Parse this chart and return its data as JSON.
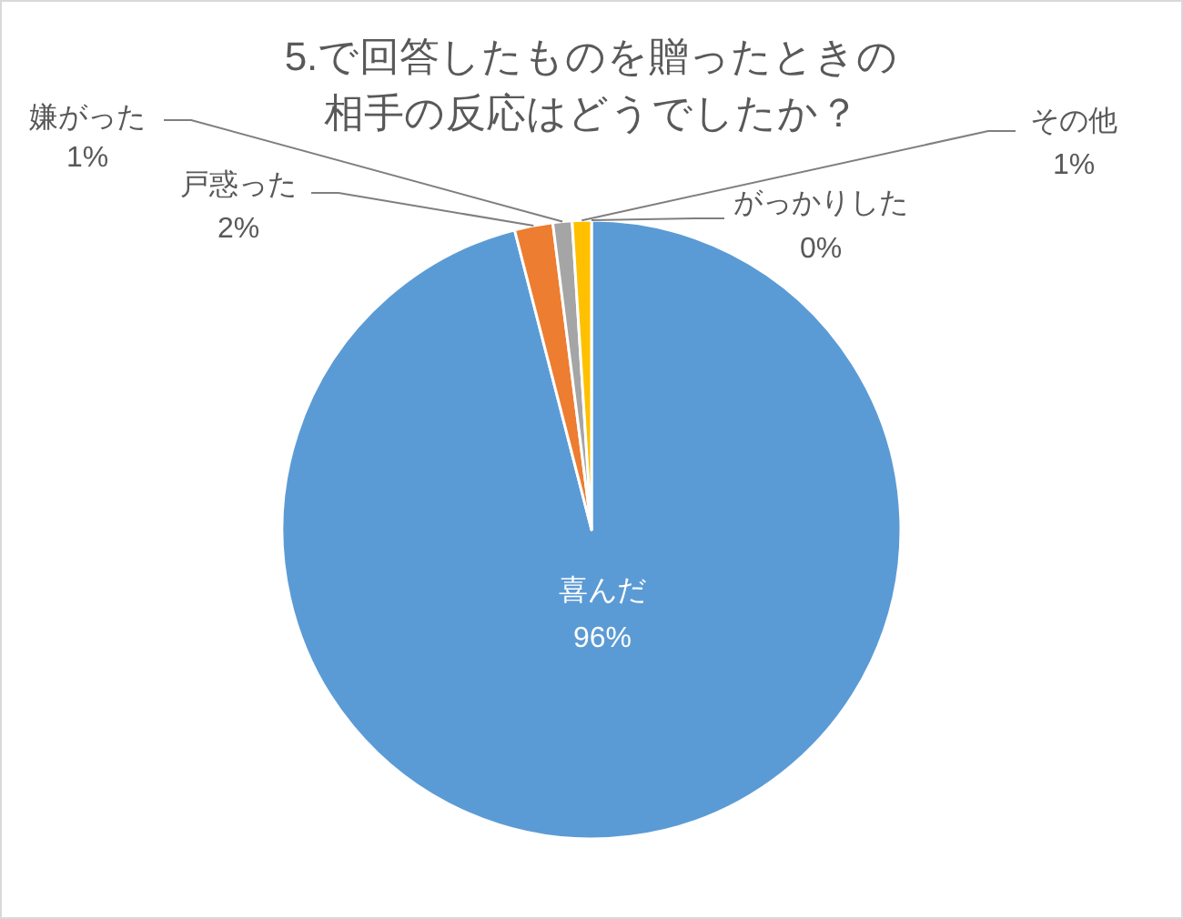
{
  "chart_data": {
    "type": "pie",
    "title": "5.で回答したものを贈ったときの相手の反応はどうでしたか？",
    "categories": [
      "喜んだ",
      "戸惑った",
      "嫌がった",
      "その他",
      "がっかりした"
    ],
    "values": [
      96,
      2,
      1,
      1,
      0
    ],
    "colors": [
      "#5b9bd5",
      "#ed7d31",
      "#a5a5a5",
      "#ffc000",
      null
    ],
    "value_labels": [
      "96%",
      "2%",
      "1%",
      "1%",
      "0%"
    ]
  }
}
